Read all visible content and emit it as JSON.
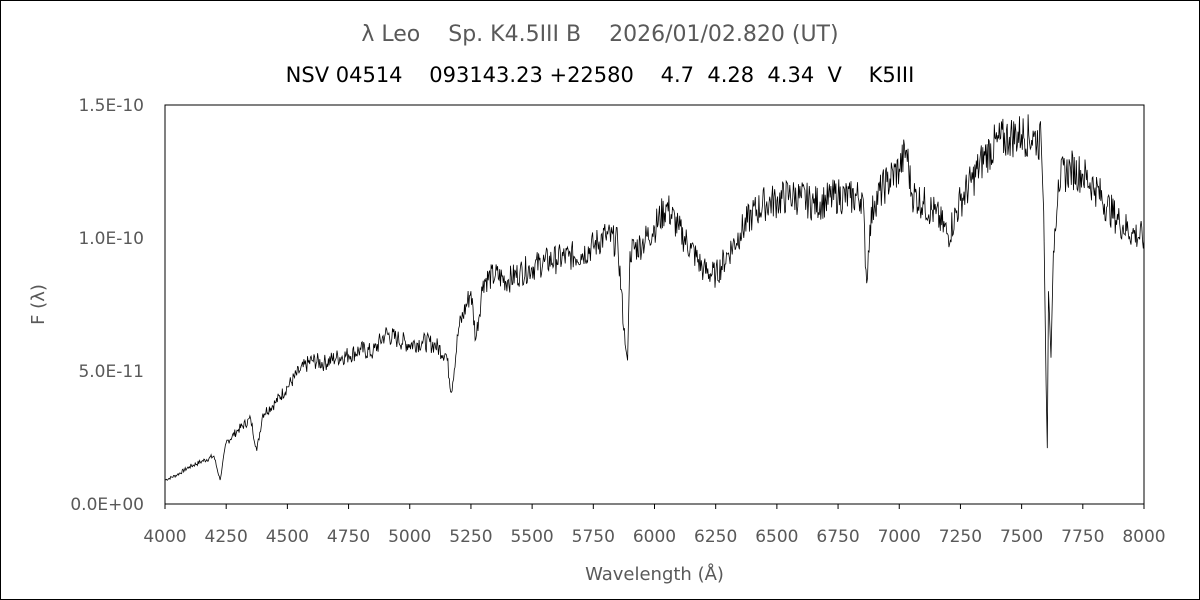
{
  "title_line1": "λ Leo    Sp. K4.5III B    2026/01/02.820 (UT)",
  "title_line2": "NSV 04514    093143.23 +22580    4.7  4.28  4.34  V    K5III",
  "chart_data": {
    "type": "line",
    "title": "λ Leo    Sp. K4.5III B    2026/01/02.820 (UT)",
    "subtitle": "NSV 04514    093143.23 +22580    4.7  4.28  4.34  V    K5III",
    "xlabel": "Wavelength (Å)",
    "ylabel": "F (λ)",
    "xlim": [
      4000,
      8000
    ],
    "ylim": [
      0,
      1.5e-10
    ],
    "x_ticks": [
      4000,
      4250,
      4500,
      4750,
      5000,
      5250,
      5500,
      5750,
      6000,
      6250,
      6500,
      6750,
      7000,
      7250,
      7500,
      7750,
      8000
    ],
    "x_tick_labels": [
      "4000",
      "4250",
      "4500",
      "4750",
      "5000",
      "5250",
      "5500",
      "5750",
      "6000",
      "6250",
      "6500",
      "6750",
      "7000",
      "7250",
      "7500",
      "7750",
      "8000"
    ],
    "y_ticks": [
      0,
      5e-11,
      1e-10,
      1.5e-10
    ],
    "y_tick_labels": [
      "0.0E+00",
      "5.0E-11",
      "1.0E-10",
      "1.5E-10"
    ],
    "grid": false,
    "legend": "none",
    "line_color": "#000000",
    "series": [
      {
        "x": [
          4000,
          4050,
          4100,
          4150,
          4200,
          4225,
          4250,
          4300,
          4350,
          4375,
          4400,
          4450,
          4500,
          4550,
          4600,
          4650,
          4700,
          4750,
          4800,
          4850,
          4900,
          4950,
          5000,
          5050,
          5100,
          5150,
          5170,
          5200,
          5250,
          5270,
          5300,
          5350,
          5400,
          5450,
          5500,
          5550,
          5600,
          5650,
          5700,
          5750,
          5800,
          5850,
          5880,
          5890,
          5900,
          5950,
          6000,
          6050,
          6100,
          6150,
          6200,
          6250,
          6300,
          6350,
          6400,
          6450,
          6500,
          6550,
          6600,
          6650,
          6700,
          6750,
          6800,
          6850,
          6867,
          6880,
          6900,
          6950,
          7000,
          7030,
          7050,
          7100,
          7150,
          7200,
          7250,
          7300,
          7350,
          7400,
          7450,
          7500,
          7550,
          7580,
          7590,
          7600,
          7605,
          7610,
          7620,
          7630,
          7650,
          7700,
          7750,
          7800,
          7850,
          7900,
          7950,
          8000
        ],
        "y": [
          9e-12,
          1.1e-11,
          1.4e-11,
          1.6e-11,
          1.8e-11,
          9e-12,
          2.3e-11,
          2.8e-11,
          3.2e-11,
          2e-11,
          3.4e-11,
          3.8e-11,
          4.4e-11,
          5e-11,
          5.4e-11,
          5.3e-11,
          5.5e-11,
          5.6e-11,
          5.8e-11,
          5.7e-11,
          6.4e-11,
          6.2e-11,
          6e-11,
          6.1e-11,
          6e-11,
          5.6e-11,
          4.2e-11,
          6.6e-11,
          8e-11,
          6.2e-11,
          8.4e-11,
          8.6e-11,
          8.4e-11,
          8.7e-11,
          8.9e-11,
          9.1e-11,
          9.2e-11,
          9.3e-11,
          9.4e-11,
          9.7e-11,
          1.01e-10,
          9.8e-11,
          6e-11,
          5.4e-11,
          9.5e-11,
          9.8e-11,
          1.04e-10,
          1.12e-10,
          1.03e-10,
          9.6e-11,
          8.8e-11,
          8.6e-11,
          9.4e-11,
          1.02e-10,
          1.09e-10,
          1.13e-10,
          1.14e-10,
          1.16e-10,
          1.15e-10,
          1.13e-10,
          1.14e-10,
          1.16e-10,
          1.15e-10,
          1.16e-10,
          8.3e-11,
          1.05e-10,
          1.14e-10,
          1.21e-10,
          1.26e-10,
          1.33e-10,
          1.17e-10,
          1.13e-10,
          1.09e-10,
          1.01e-10,
          1.14e-10,
          1.22e-10,
          1.31e-10,
          1.36e-10,
          1.38e-10,
          1.39e-10,
          1.38e-10,
          1.36e-10,
          1.1e-10,
          4.5e-11,
          2.1e-11,
          8e-11,
          5.5e-11,
          9.5e-11,
          1.22e-10,
          1.26e-10,
          1.24e-10,
          1.19e-10,
          1.12e-10,
          1.06e-10,
          1.02e-10,
          1e-10
        ]
      }
    ]
  }
}
